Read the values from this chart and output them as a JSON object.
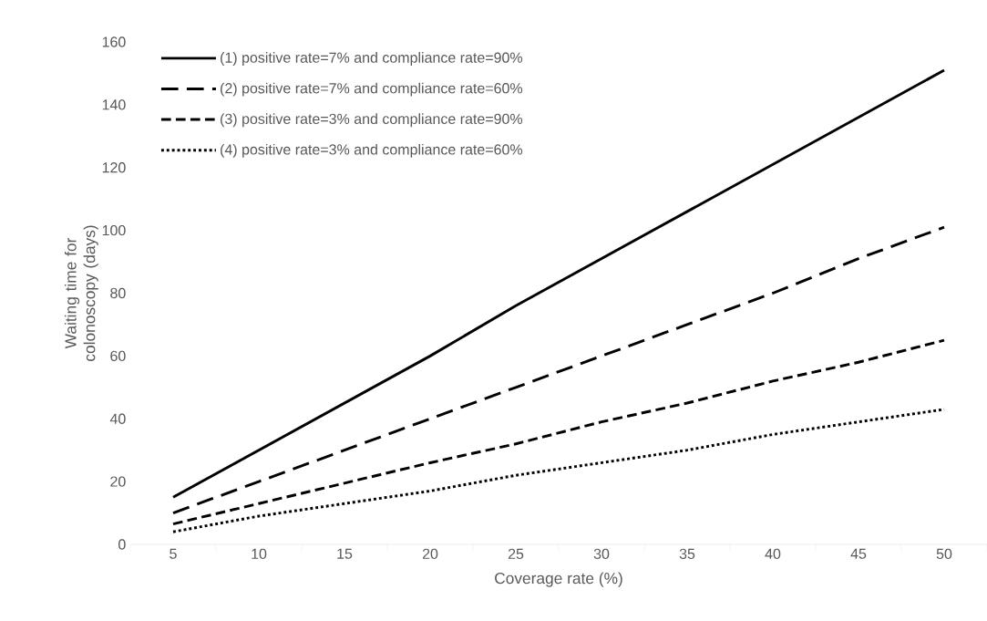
{
  "chart_data": {
    "type": "line",
    "xlabel": "Coverage rate (%)",
    "ylabel": "Waiting time for colonoscopy (days)",
    "categories": [
      "5",
      "10",
      "15",
      "20",
      "25",
      "30",
      "35",
      "40",
      "45",
      "50"
    ],
    "ylim": [
      0,
      160
    ],
    "yticks": [
      0,
      20,
      40,
      60,
      80,
      100,
      120,
      140,
      160
    ],
    "legend": "top left",
    "series": [
      {
        "name": "(1) positive rate=7% and compliance rate=90%",
        "color": "#000000",
        "line_style": "solid",
        "values": [
          15,
          30,
          45,
          60,
          76,
          91,
          106,
          121,
          136,
          151
        ]
      },
      {
        "name": "(2) positive rate=7% and compliance rate=60%",
        "color": "#000000",
        "line_style": "long dashed",
        "values": [
          10,
          20,
          30,
          40,
          50,
          60,
          70,
          80,
          91,
          101
        ]
      },
      {
        "name": "(3) positive rate=3% and compliance rate=90%",
        "color": "#000000",
        "line_style": "dashed",
        "values": [
          6.5,
          13,
          19.5,
          26,
          32,
          39,
          45,
          52,
          58,
          65
        ]
      },
      {
        "name": "(4) positive rate=3% and compliance rate=60%",
        "color": "#000000",
        "line_style": "dotted",
        "values": [
          4,
          9,
          13,
          17,
          22,
          26,
          30,
          35,
          39,
          43
        ]
      }
    ]
  }
}
